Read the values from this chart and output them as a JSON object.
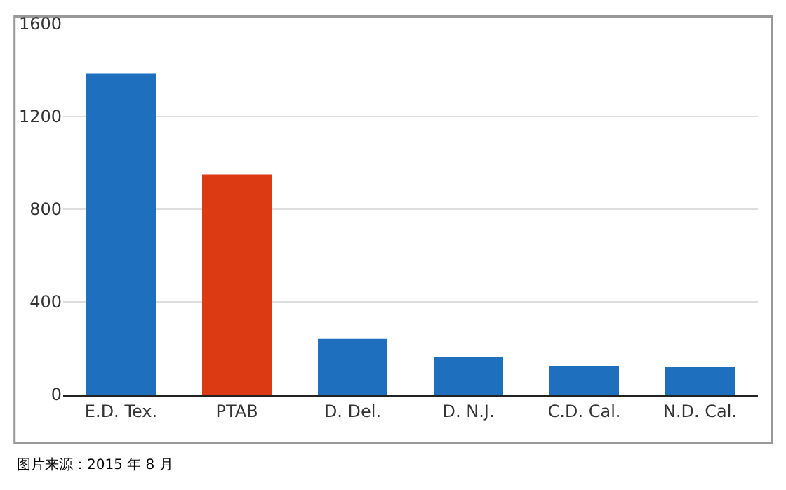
{
  "chart_data": {
    "type": "bar",
    "categories": [
      "E.D. Tex.",
      "PTAB",
      "D. Del.",
      "D. N.J.",
      "C.D. Cal.",
      "N.D. Cal."
    ],
    "values": [
      1386,
      950,
      240,
      164,
      124,
      118
    ],
    "colors": [
      "#1f6fbf",
      "#dc3a12",
      "#1f6fbf",
      "#1f6fbf",
      "#1f6fbf",
      "#1f6fbf"
    ],
    "ylim": [
      0,
      1600
    ],
    "yticks": [
      0,
      400,
      800,
      1200,
      1600
    ],
    "grid": "y",
    "annotations": [
      "图片来源：2015 年 8 月"
    ]
  }
}
